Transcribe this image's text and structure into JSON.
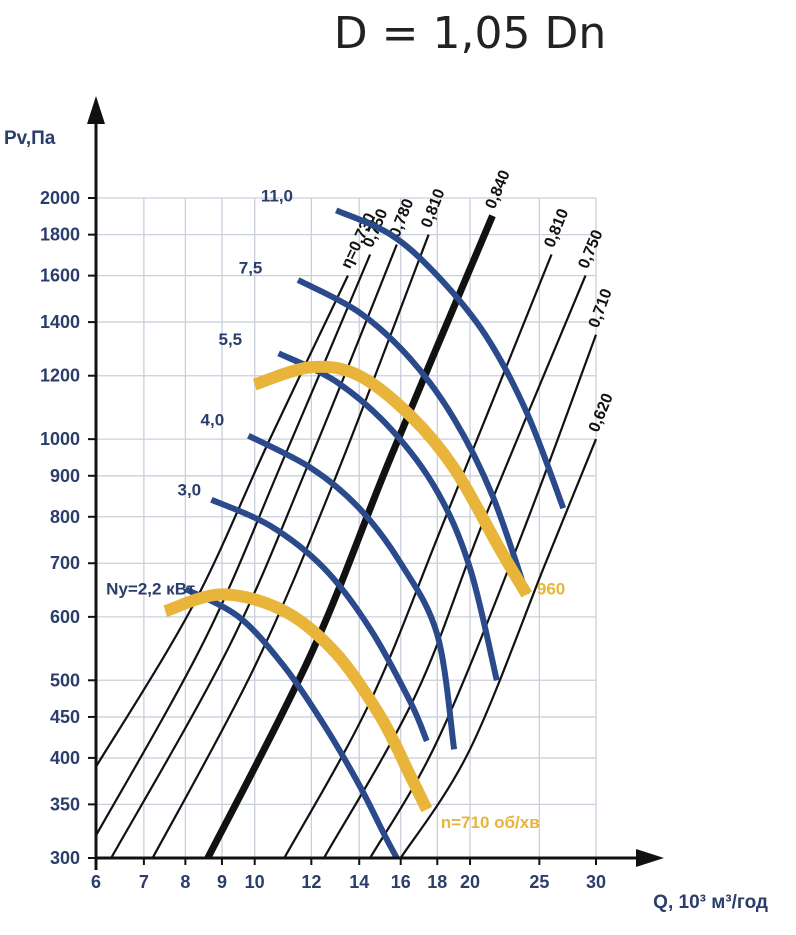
{
  "chart_data": {
    "type": "line",
    "title": "D = 1,05 Dn",
    "xlabel": "Q, 10³ м³/год",
    "ylabel": "Pv,Па",
    "x_scale": "log",
    "y_scale": "log",
    "xlim": [
      6,
      30
    ],
    "ylim": [
      300,
      2000
    ],
    "grid": true,
    "x_ticks": [
      {
        "v": 6,
        "label": "6"
      },
      {
        "v": 7,
        "label": "7"
      },
      {
        "v": 8,
        "label": "8"
      },
      {
        "v": 9,
        "label": "9"
      },
      {
        "v": 10,
        "label": "10"
      },
      {
        "v": 12,
        "label": "12"
      },
      {
        "v": 14,
        "label": "14"
      },
      {
        "v": 16,
        "label": "16"
      },
      {
        "v": 18,
        "label": "18"
      },
      {
        "v": 20,
        "label": "20"
      },
      {
        "v": 25,
        "label": "25"
      },
      {
        "v": 30,
        "label": "30"
      }
    ],
    "y_ticks": [
      {
        "v": 300,
        "label": "300"
      },
      {
        "v": 350,
        "label": "350"
      },
      {
        "v": 400,
        "label": "400"
      },
      {
        "v": 450,
        "label": "450"
      },
      {
        "v": 500,
        "label": "500"
      },
      {
        "v": 600,
        "label": "600"
      },
      {
        "v": 700,
        "label": "700"
      },
      {
        "v": 800,
        "label": "800"
      },
      {
        "v": 900,
        "label": "900"
      },
      {
        "v": 1000,
        "label": "1000"
      },
      {
        "v": 1200,
        "label": "1200"
      },
      {
        "v": 1400,
        "label": "1400"
      },
      {
        "v": 1600,
        "label": "1600"
      },
      {
        "v": 1800,
        "label": "1800"
      },
      {
        "v": 2000,
        "label": "2000"
      }
    ],
    "efficiency_lines": [
      {
        "label": "η=0,730",
        "points": [
          [
            6.0,
            390
          ],
          [
            8.2,
            620
          ],
          [
            10.5,
            1000
          ],
          [
            13.5,
            1600
          ]
        ],
        "bold": false
      },
      {
        "label": "0,750",
        "points": [
          [
            6.0,
            320
          ],
          [
            8.5,
            560
          ],
          [
            11.0,
            950
          ],
          [
            14.5,
            1700
          ]
        ],
        "bold": false
      },
      {
        "label": "0,780",
        "points": [
          [
            6.3,
            300
          ],
          [
            9.2,
            550
          ],
          [
            12.0,
            950
          ],
          [
            15.8,
            1750
          ]
        ],
        "bold": false
      },
      {
        "label": "0,810",
        "points": [
          [
            7.2,
            300
          ],
          [
            10.0,
            520
          ],
          [
            13.0,
            900
          ],
          [
            17.5,
            1800
          ]
        ],
        "bold": false
      },
      {
        "label": "0,840",
        "points": [
          [
            8.6,
            300
          ],
          [
            12.0,
            540
          ],
          [
            15.5,
            950
          ],
          [
            21.5,
            1900
          ]
        ],
        "bold": true
      },
      {
        "label": "0,810",
        "points": [
          [
            11.0,
            300
          ],
          [
            14.5,
            470
          ],
          [
            18.5,
            800
          ],
          [
            26.0,
            1700
          ]
        ],
        "bold": false
      },
      {
        "label": "0,750",
        "points": [
          [
            12.5,
            300
          ],
          [
            16.8,
            480
          ],
          [
            21.0,
            800
          ],
          [
            29.0,
            1600
          ]
        ],
        "bold": false
      },
      {
        "label": "0,710",
        "points": [
          [
            14.5,
            300
          ],
          [
            18.0,
            420
          ],
          [
            23.5,
            750
          ],
          [
            30.0,
            1350
          ]
        ],
        "bold": false
      },
      {
        "label": "0,620",
        "points": [
          [
            16.0,
            300
          ],
          [
            20.0,
            410
          ],
          [
            25.5,
            700
          ],
          [
            30.0,
            1000
          ]
        ],
        "bold": false
      }
    ],
    "series": [
      {
        "name": "Ny=2,2 кВт",
        "kind": "power",
        "label_at": [
          6.2,
          640
        ],
        "points": [
          [
            8.0,
            650
          ],
          [
            9.5,
            600
          ],
          [
            11.0,
            520
          ],
          [
            12.5,
            440
          ],
          [
            14.0,
            370
          ],
          [
            15.2,
            320
          ],
          [
            15.8,
            300
          ]
        ]
      },
      {
        "name": "3,0",
        "kind": "power",
        "label_at": [
          7.8,
          850
        ],
        "points": [
          [
            8.7,
            840
          ],
          [
            10.5,
            780
          ],
          [
            12.5,
            690
          ],
          [
            14.5,
            580
          ],
          [
            16.5,
            470
          ],
          [
            17.4,
            420
          ]
        ]
      },
      {
        "name": "4,0",
        "kind": "power",
        "label_at": [
          8.4,
          1040
        ],
        "points": [
          [
            9.8,
            1010
          ],
          [
            12.0,
            920
          ],
          [
            14.0,
            820
          ],
          [
            16.0,
            700
          ],
          [
            18.0,
            570
          ],
          [
            19.0,
            410
          ]
        ]
      },
      {
        "name": "5,5",
        "kind": "power",
        "label_at": [
          8.9,
          1310
        ],
        "points": [
          [
            10.8,
            1280
          ],
          [
            13.0,
            1180
          ],
          [
            15.5,
            1030
          ],
          [
            18.0,
            860
          ],
          [
            20.0,
            690
          ],
          [
            21.8,
            500
          ]
        ]
      },
      {
        "name": "7,5",
        "kind": "power",
        "label_at": [
          9.5,
          1610
        ],
        "points": [
          [
            11.5,
            1580
          ],
          [
            14.0,
            1440
          ],
          [
            16.5,
            1260
          ],
          [
            19.0,
            1060
          ],
          [
            21.5,
            850
          ],
          [
            24.0,
            640
          ]
        ]
      },
      {
        "name": "11,0",
        "kind": "power",
        "label_at": [
          10.2,
          1980
        ],
        "points": [
          [
            13.0,
            1930
          ],
          [
            15.5,
            1800
          ],
          [
            18.0,
            1600
          ],
          [
            21.0,
            1350
          ],
          [
            24.0,
            1080
          ],
          [
            27.0,
            820
          ]
        ]
      },
      {
        "name": "960",
        "kind": "speed",
        "label_at": [
          24.8,
          640
        ],
        "points": [
          [
            10.0,
            1170
          ],
          [
            12.0,
            1230
          ],
          [
            14.0,
            1200
          ],
          [
            16.5,
            1070
          ],
          [
            19.0,
            920
          ],
          [
            22.0,
            730
          ],
          [
            24.0,
            640
          ]
        ]
      },
      {
        "name": "n=710 об/хв",
        "kind": "speed",
        "label_at": [
          18.2,
          327
        ],
        "points": [
          [
            7.5,
            610
          ],
          [
            9.0,
            640
          ],
          [
            11.0,
            610
          ],
          [
            13.0,
            540
          ],
          [
            15.0,
            450
          ],
          [
            16.5,
            380
          ],
          [
            17.4,
            345
          ]
        ]
      }
    ]
  }
}
